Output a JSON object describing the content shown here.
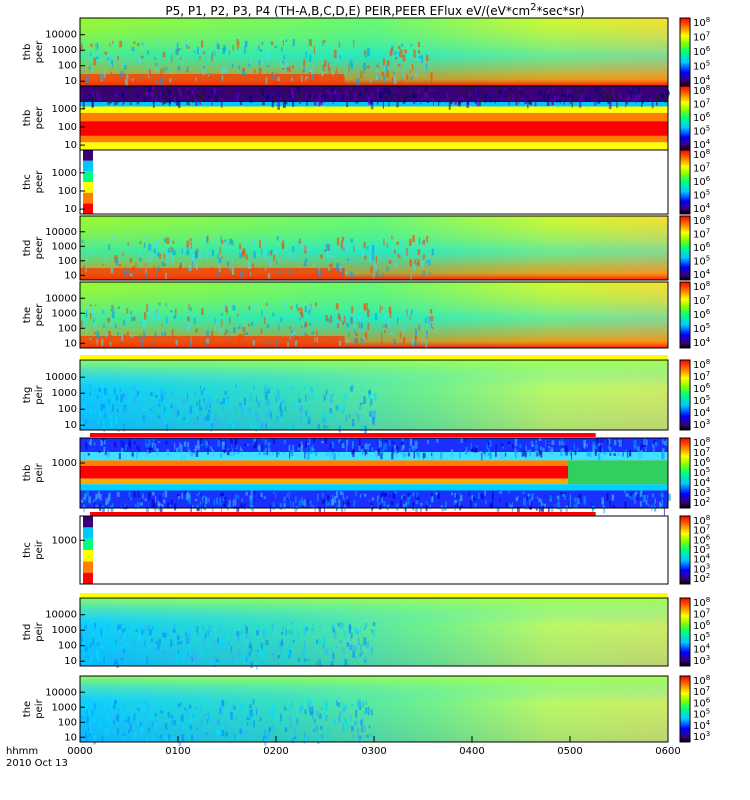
{
  "title_parts": {
    "pre": "P5, P1, P2, P3, P4 (TH-A,B,C,D,E) PEIR,PEER EFlux eV/(eV*cm",
    "sup": "2",
    "post": "*sec*sr)"
  },
  "chart_data": {
    "type": "heatmap",
    "x_label": "hhmm",
    "date_label": "2010 Oct 13",
    "x_ticks": [
      "0000",
      "0100",
      "0200",
      "0300",
      "0400",
      "0500",
      "0600"
    ],
    "grid": false,
    "colorbar": "rainbow",
    "panels": [
      {
        "probe": "thb",
        "species": "peer",
        "y_ticks": [
          "10",
          "100",
          "1000",
          "10000"
        ],
        "cbar_ticks": [
          "4",
          "5",
          "6",
          "7",
          "8"
        ],
        "bar": "none",
        "pattern": "dense"
      },
      {
        "probe": "thb",
        "species": "peer",
        "y_ticks": [
          "10",
          "100",
          "1000"
        ],
        "cbar_ticks": [
          "4",
          "5",
          "6",
          "7",
          "8"
        ],
        "bar": "none",
        "pattern": "bands"
      },
      {
        "probe": "thc",
        "species": "peer",
        "y_ticks": [
          "10",
          "100",
          "1000"
        ],
        "cbar_ticks": [
          "4",
          "5",
          "6",
          "7",
          "8"
        ],
        "bar": "none",
        "pattern": "start"
      },
      {
        "probe": "thd",
        "species": "peer",
        "y_ticks": [
          "10",
          "100",
          "1000",
          "10000"
        ],
        "cbar_ticks": [
          "4",
          "5",
          "6",
          "7",
          "8"
        ],
        "bar": "none",
        "pattern": "dense"
      },
      {
        "probe": "the",
        "species": "peer",
        "y_ticks": [
          "10",
          "100",
          "1000",
          "10000"
        ],
        "cbar_ticks": [
          "4",
          "5",
          "6",
          "7",
          "8"
        ],
        "bar": "yellow",
        "pattern": "dense"
      },
      {
        "probe": "thg",
        "species": "peir",
        "y_ticks": [
          "10",
          "100",
          "1000",
          "10000"
        ],
        "cbar_ticks": [
          "3",
          "4",
          "5",
          "6",
          "7",
          "8"
        ],
        "bar": "red",
        "pattern": "ion"
      },
      {
        "probe": "thb",
        "species": "peir",
        "y_ticks": [
          "1000"
        ],
        "cbar_ticks": [
          "2",
          "3",
          "4",
          "5",
          "6",
          "7",
          "8"
        ],
        "bar": "red",
        "pattern": "bands"
      },
      {
        "probe": "thc",
        "species": "peir",
        "y_ticks": [
          "1000"
        ],
        "cbar_ticks": [
          "2",
          "3",
          "4",
          "5",
          "6",
          "7",
          "8"
        ],
        "bar": "yellow",
        "pattern": "start"
      },
      {
        "probe": "thd",
        "species": "peir",
        "y_ticks": [
          "10",
          "100",
          "1000",
          "10000"
        ],
        "cbar_ticks": [
          "3",
          "4",
          "5",
          "6",
          "7",
          "8"
        ],
        "bar": "none",
        "pattern": "ion"
      },
      {
        "probe": "the",
        "species": "peir",
        "y_ticks": [
          "10",
          "100",
          "1000",
          "10000"
        ],
        "cbar_ticks": [
          "3",
          "4",
          "5",
          "6",
          "7",
          "8"
        ],
        "bar": "none",
        "pattern": "ion"
      }
    ]
  }
}
